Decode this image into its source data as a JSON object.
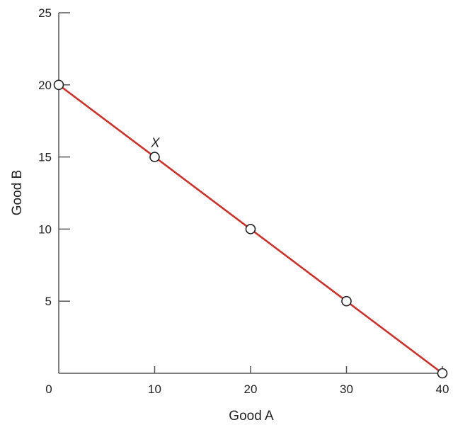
{
  "chart_data": {
    "type": "line",
    "title": "",
    "xlabel": "Good A",
    "ylabel": "Good B",
    "xlim": [
      0,
      40
    ],
    "ylim": [
      0,
      25
    ],
    "xticks": [
      0,
      10,
      20,
      30,
      40
    ],
    "yticks": [
      5,
      10,
      15,
      20,
      25
    ],
    "grid": false,
    "legend": "none",
    "series": [
      {
        "x": [
          0,
          10,
          20,
          30,
          40
        ],
        "y": [
          20,
          15,
          10,
          5,
          0
        ],
        "color": "#c8332b",
        "markers": "open-circle"
      }
    ],
    "annotations": [
      {
        "text": "X",
        "x": 10,
        "y": 15
      }
    ]
  }
}
